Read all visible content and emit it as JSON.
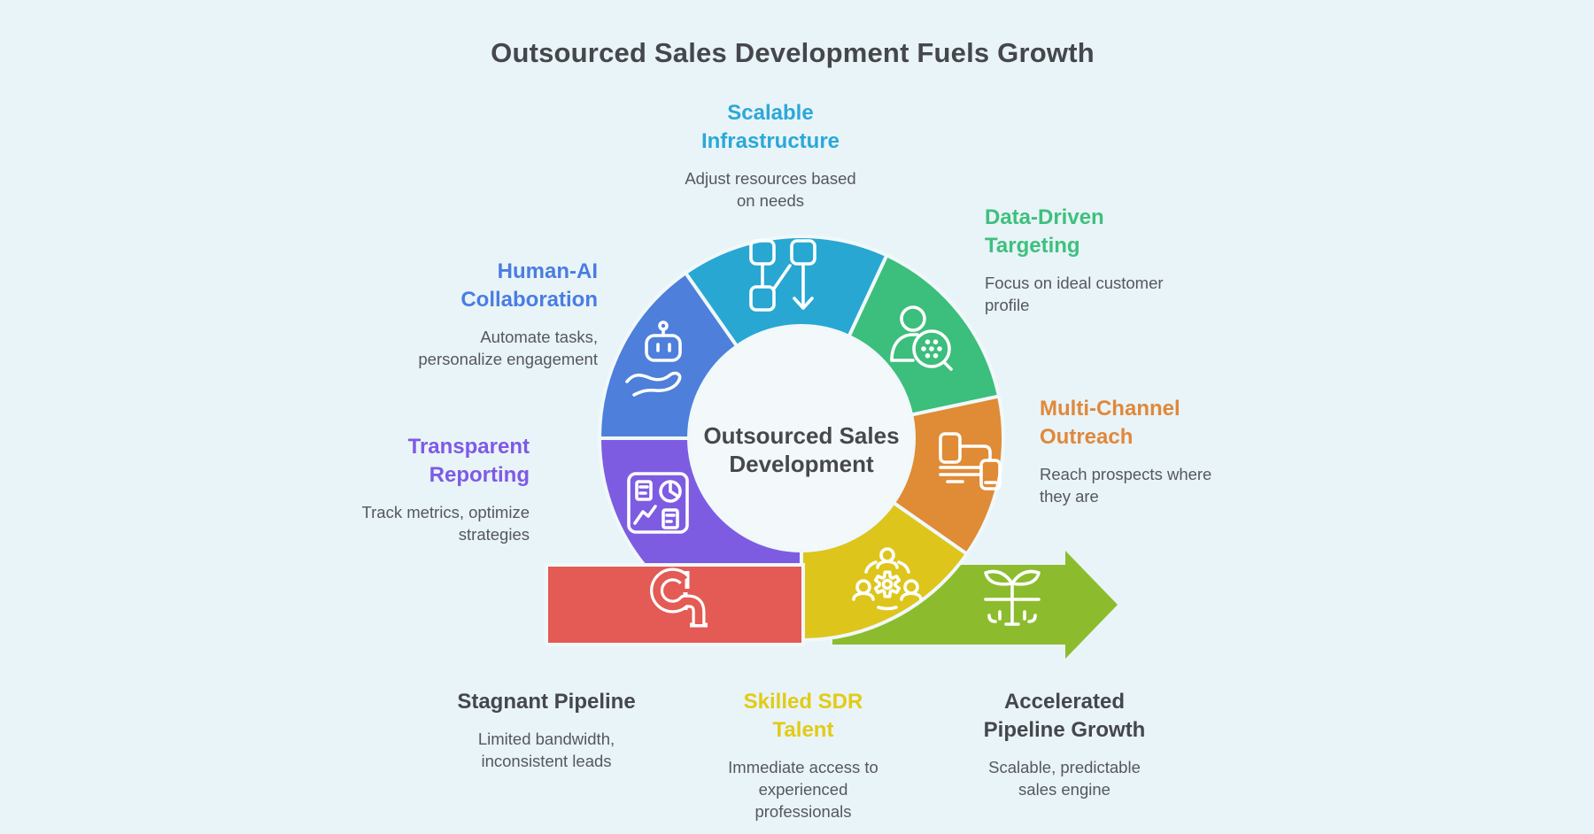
{
  "title": "Outsourced Sales Development Fuels Growth",
  "center_label": "Outsourced Sales\nDevelopment",
  "labels": [
    {
      "id": "scalable-infrastructure",
      "heading": "Scalable\nInfrastructure",
      "description": "Adjust resources based\non needs",
      "color": "#2ba8d8"
    },
    {
      "id": "data-driven-targeting",
      "heading": "Data-Driven\nTargeting",
      "description": "Focus on ideal customer\nprofile",
      "color": "#3ec07e"
    },
    {
      "id": "multi-channel-outreach",
      "heading": "Multi-Channel\nOutreach",
      "description": "Reach prospects where\nthey are",
      "color": "#e0883a"
    },
    {
      "id": "human-ai-collaboration",
      "heading": "Human-AI\nCollaboration",
      "description": "Automate tasks,\npersonalize engagement",
      "color": "#4a7de2"
    },
    {
      "id": "transparent-reporting",
      "heading": "Transparent\nReporting",
      "description": "Track metrics, optimize\nstrategies",
      "color": "#7d5ae6"
    },
    {
      "id": "stagnant-pipeline",
      "heading": "Stagnant Pipeline",
      "description": "Limited bandwidth,\ninconsistent leads",
      "color": "#45474c"
    },
    {
      "id": "skilled-sdr-talent",
      "heading": "Skilled SDR\nTalent",
      "description": "Immediate access to\nexperienced\nprofessionals",
      "color": "#e2cb16"
    },
    {
      "id": "accelerated-pipeline-growth",
      "heading": "Accelerated\nPipeline Growth",
      "description": "Scalable, predictable\nsales engine",
      "color": "#45474c"
    }
  ],
  "wheel": {
    "segments": [
      {
        "name": "transparent-reporting",
        "color": "#7d5ce2"
      },
      {
        "name": "human-ai-collaboration",
        "color": "#4d7fdb"
      },
      {
        "name": "scalable-infrastructure",
        "color": "#28a7d3"
      },
      {
        "name": "data-driven-targeting",
        "color": "#3cbe7c"
      },
      {
        "name": "multi-channel-outreach",
        "color": "#e08b36"
      },
      {
        "name": "skilled-sdr-talent",
        "color": "#ddc51b"
      }
    ],
    "band_color": "#e45a54",
    "arrow_color": "#8cbc2e",
    "hole_color": "#f3f9fb",
    "gap_color": "#f0f8fa"
  },
  "icons": {
    "scalable-infrastructure": "flowchart-icon",
    "data-driven-targeting": "person-target-icon",
    "multi-channel-outreach": "devices-icon",
    "skilled-sdr-talent": "team-gear-icon",
    "transparent-reporting": "report-dashboard-icon",
    "human-ai-collaboration": "robot-hand-icon",
    "stagnant-pipeline": "pipeline-icon",
    "accelerated-pipeline-growth": "sprout-growth-icon"
  }
}
